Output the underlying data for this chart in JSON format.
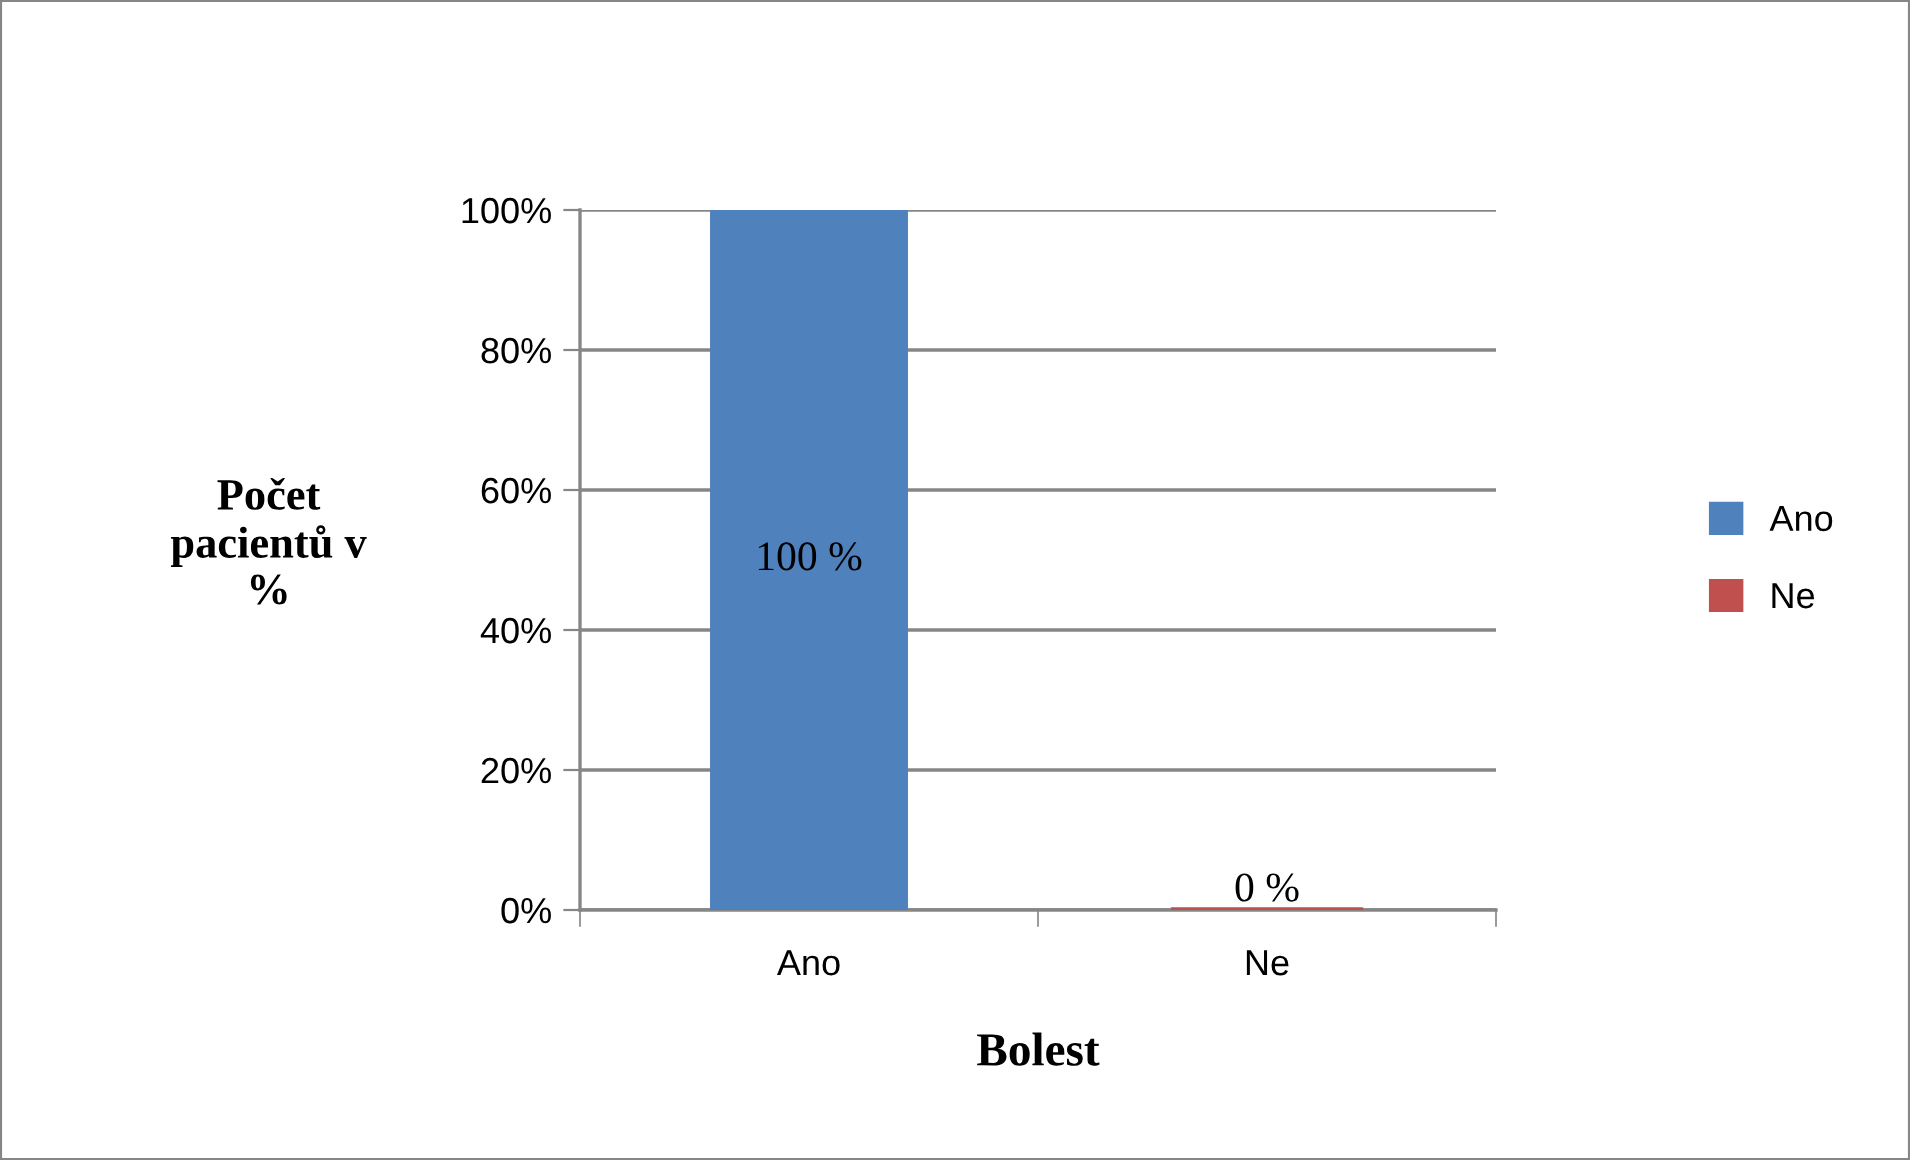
{
  "chart_data": {
    "type": "bar",
    "xlabel": "Bolest",
    "ylabel": "Počet\npacientů v\n%",
    "categories": [
      "Ano",
      "Ne"
    ],
    "series": [
      {
        "name": "Ano",
        "color": "#4f81bd",
        "values": [
          100,
          null
        ],
        "value_labels": [
          "100 %",
          null
        ]
      },
      {
        "name": "Ne",
        "color": "#c0504d",
        "values": [
          null,
          0
        ],
        "value_labels": [
          null,
          "0 %"
        ]
      }
    ],
    "ylim": [
      0,
      100
    ],
    "yticks": [
      {
        "value": 0,
        "label": "0%"
      },
      {
        "value": 20,
        "label": "20%"
      },
      {
        "value": 40,
        "label": "40%"
      },
      {
        "value": 60,
        "label": "60%"
      },
      {
        "value": 80,
        "label": "80%"
      },
      {
        "value": 100,
        "label": "100%"
      }
    ],
    "grid": "y",
    "legend": "right"
  }
}
